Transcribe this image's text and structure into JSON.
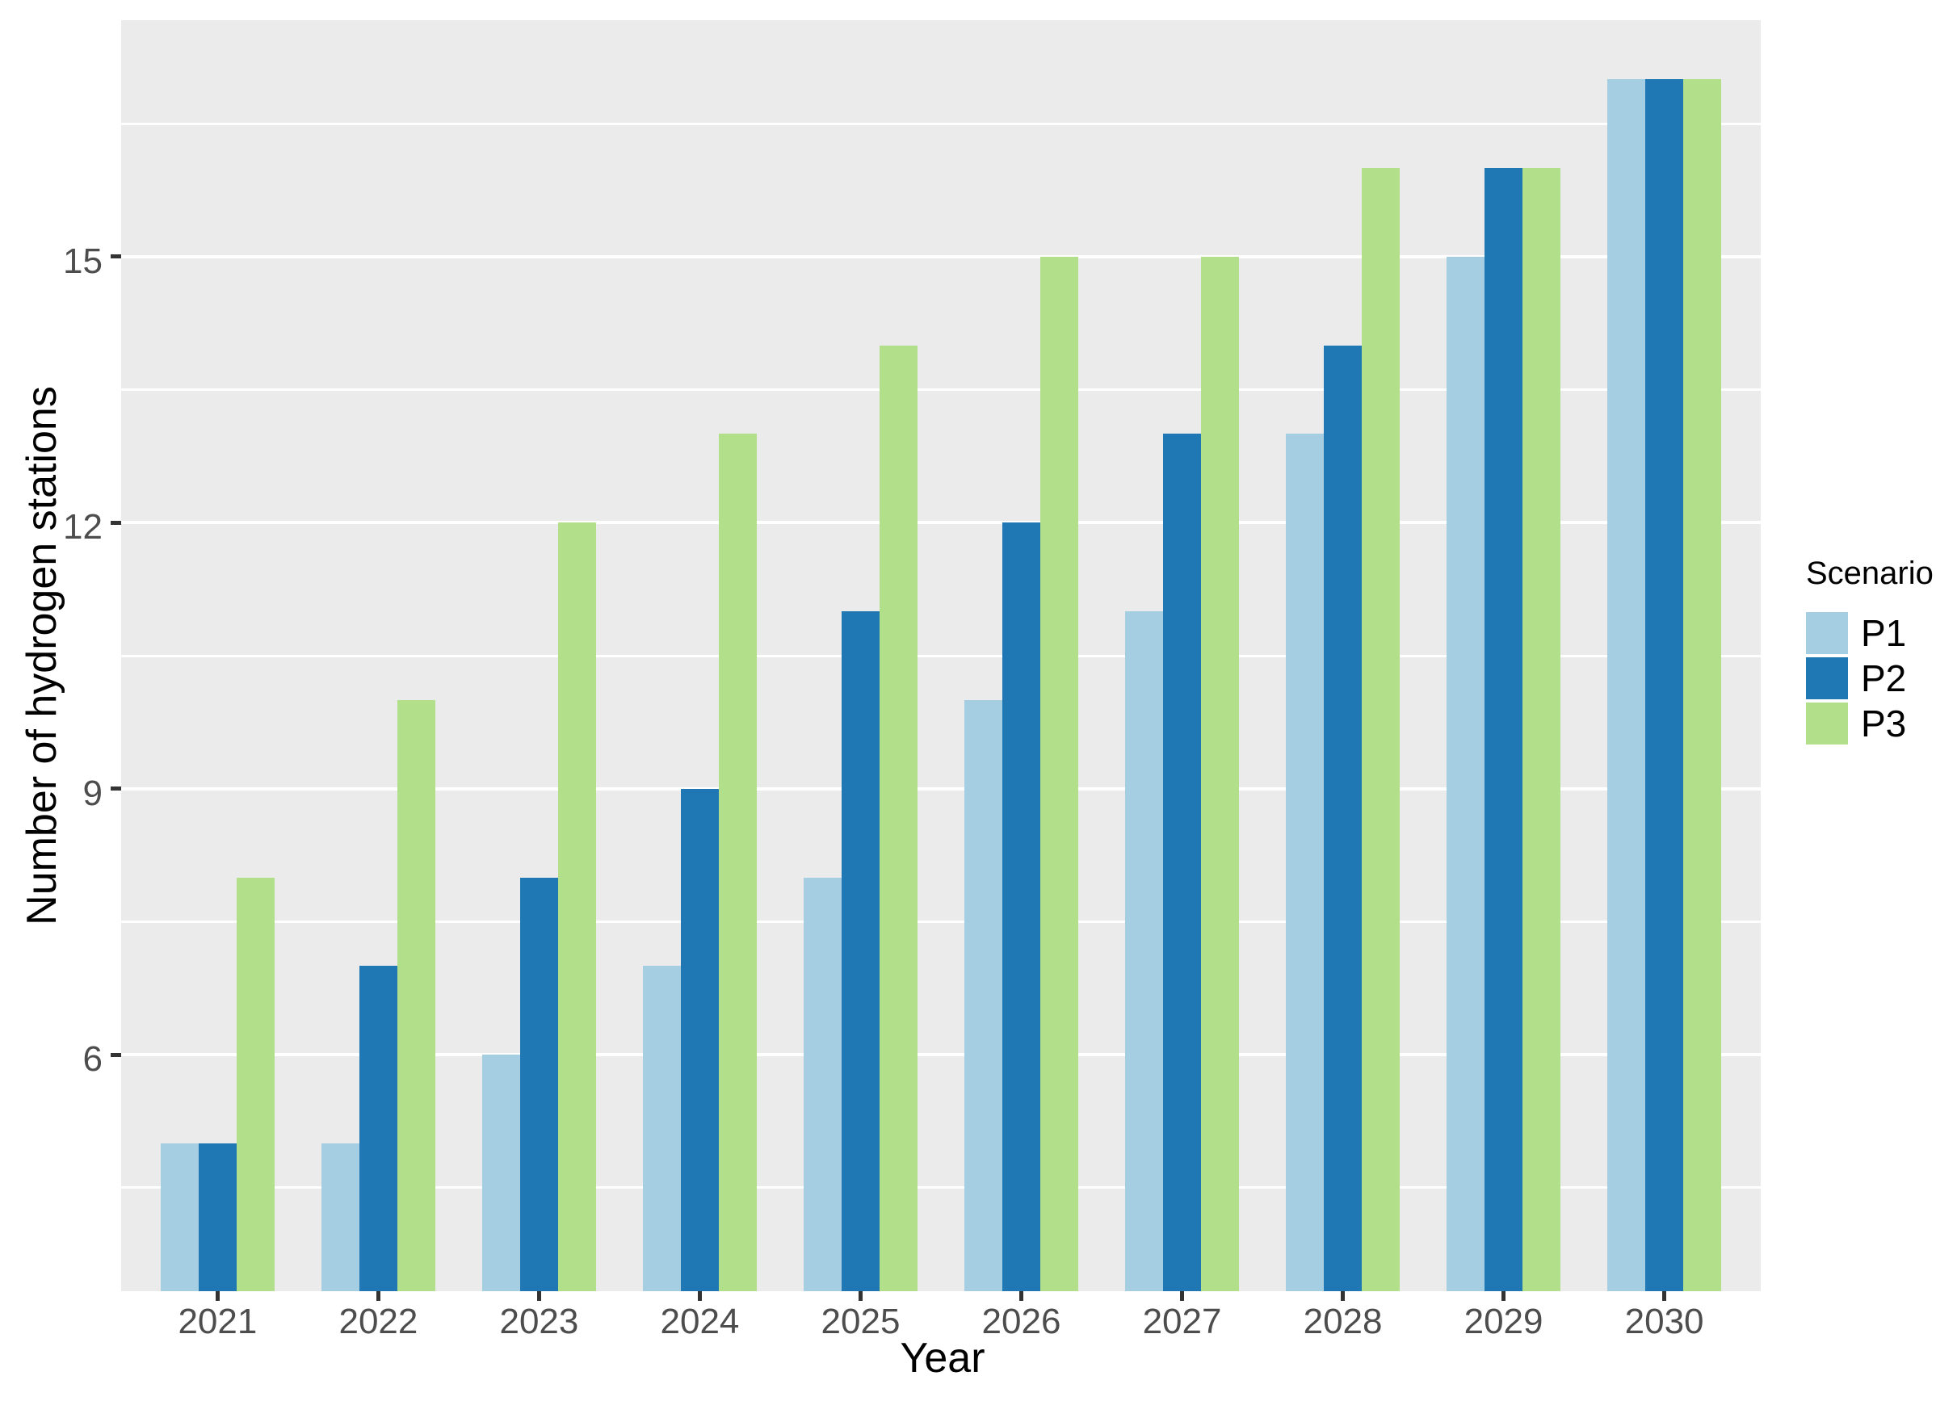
{
  "figure": {
    "background": "#ffffff",
    "panel_background": "#ebebeb",
    "grid_color": "#ffffff",
    "tick_mark_color": "#333333",
    "tick_label_color": "#4d4d4d",
    "title_color": "#000000"
  },
  "axes": {
    "x_title": "Year",
    "y_title": "Number of hydrogen stations"
  },
  "legend": {
    "title": "Scenario",
    "entries": [
      {
        "label": "P1",
        "color": "#a6cee3"
      },
      {
        "label": "P2",
        "color": "#1f78b4"
      },
      {
        "label": "P3",
        "color": "#b2df8a"
      }
    ]
  },
  "chart_data": {
    "type": "bar",
    "title": "",
    "xlabel": "Year",
    "ylabel": "Number of hydrogen stations",
    "categories": [
      "2021",
      "2022",
      "2023",
      "2024",
      "2025",
      "2026",
      "2027",
      "2028",
      "2029",
      "2030"
    ],
    "series": [
      {
        "name": "P1",
        "color": "#a6cee3",
        "values": [
          5,
          5,
          6,
          7,
          8,
          10,
          11,
          13,
          15,
          17
        ]
      },
      {
        "name": "P2",
        "color": "#1f78b4",
        "values": [
          5,
          7,
          8,
          9,
          11,
          12,
          13,
          14,
          16,
          17
        ]
      },
      {
        "name": "P3",
        "color": "#b2df8a",
        "values": [
          8,
          10,
          12,
          13,
          14,
          15,
          15,
          16,
          16,
          17
        ]
      }
    ],
    "ylim": [
      3.333,
      17.667
    ],
    "y_major_ticks": [
      6,
      9,
      12,
      15
    ],
    "y_minor_ticks": [
      4.5,
      7.5,
      10.5,
      13.5,
      16.5
    ],
    "grid": true,
    "bars_clipped_at_panel_bottom": true,
    "legend_position": "right",
    "legend_title": "Scenario"
  }
}
